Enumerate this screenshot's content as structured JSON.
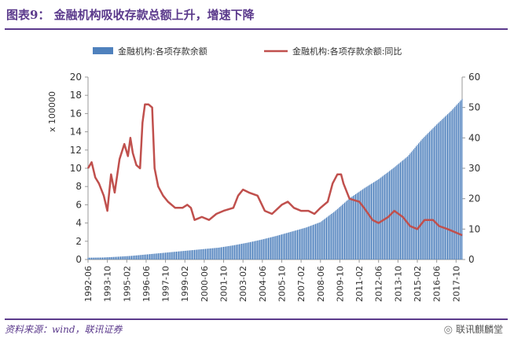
{
  "header": {
    "title": "图表9：  金融机构吸收存款总额上升，增速下降"
  },
  "footer": {
    "source": "资料来源：wind，联讯证券",
    "watermark": "联讯麒麟堂",
    "watermark_icon": "wechat-icon"
  },
  "chart_data": {
    "type": "bar+line",
    "legend_position": "top",
    "grid": false,
    "left_axis": {
      "unit_label": "x 100000",
      "ylim": [
        0,
        20
      ],
      "ticks": [
        0,
        2,
        4,
        6,
        8,
        10,
        12,
        14,
        16,
        18,
        20
      ]
    },
    "right_axis": {
      "ylim": [
        0,
        60
      ],
      "ticks": [
        0,
        10,
        20,
        30,
        40,
        50,
        60
      ]
    },
    "x_tick_labels": [
      "1992-06",
      "1993-10",
      "1995-02",
      "1996-06",
      "1997-10",
      "1999-02",
      "2000-06",
      "2001-10",
      "2003-02",
      "2004-06",
      "2005-10",
      "2007-02",
      "2008-06",
      "2009-10",
      "2011-02",
      "2012-06",
      "2013-10",
      "2015-02",
      "2016-06",
      "2017-10"
    ],
    "series": [
      {
        "name": "金融机构:各项存款余额",
        "kind": "bar",
        "axis": "left",
        "color": "#4f81bd",
        "points": [
          [
            "1992-06",
            0.2
          ],
          [
            "1993-06",
            0.22
          ],
          [
            "1994-06",
            0.3
          ],
          [
            "1995-06",
            0.4
          ],
          [
            "1996-06",
            0.55
          ],
          [
            "1997-06",
            0.7
          ],
          [
            "1998-06",
            0.85
          ],
          [
            "1999-06",
            1.0
          ],
          [
            "2000-06",
            1.15
          ],
          [
            "2001-06",
            1.3
          ],
          [
            "2002-06",
            1.55
          ],
          [
            "2003-06",
            1.85
          ],
          [
            "2004-06",
            2.2
          ],
          [
            "2005-06",
            2.6
          ],
          [
            "2006-06",
            3.05
          ],
          [
            "2007-06",
            3.5
          ],
          [
            "2008-06",
            4.1
          ],
          [
            "2009-06",
            5.3
          ],
          [
            "2010-06",
            6.7
          ],
          [
            "2011-06",
            7.8
          ],
          [
            "2012-06",
            8.8
          ],
          [
            "2013-06",
            10.0
          ],
          [
            "2014-06",
            11.3
          ],
          [
            "2015-06",
            13.2
          ],
          [
            "2016-06",
            14.8
          ],
          [
            "2017-06",
            16.3
          ],
          [
            "2018-03",
            17.6
          ]
        ]
      },
      {
        "name": "金融机构:各项存款余额:同比",
        "kind": "line",
        "axis": "right",
        "color": "#c0504d",
        "points": [
          [
            "1992-06",
            30
          ],
          [
            "1992-09",
            32
          ],
          [
            "1992-12",
            27
          ],
          [
            "1993-03",
            25
          ],
          [
            "1993-07",
            21
          ],
          [
            "1993-10",
            16
          ],
          [
            "1994-01",
            28
          ],
          [
            "1994-04",
            22
          ],
          [
            "1994-08",
            33
          ],
          [
            "1994-12",
            38
          ],
          [
            "1995-03",
            34
          ],
          [
            "1995-05",
            40
          ],
          [
            "1995-07",
            35
          ],
          [
            "1995-10",
            31
          ],
          [
            "1996-01",
            30
          ],
          [
            "1996-03",
            45
          ],
          [
            "1996-05",
            51
          ],
          [
            "1996-08",
            51
          ],
          [
            "1996-11",
            50
          ],
          [
            "1997-01",
            30
          ],
          [
            "1997-04",
            24
          ],
          [
            "1997-08",
            21
          ],
          [
            "1997-12",
            19
          ],
          [
            "1998-06",
            17
          ],
          [
            "1998-12",
            17
          ],
          [
            "1999-04",
            18
          ],
          [
            "1999-07",
            17
          ],
          [
            "1999-10",
            13
          ],
          [
            "2000-04",
            14
          ],
          [
            "2000-10",
            13
          ],
          [
            "2001-04",
            15
          ],
          [
            "2001-10",
            16
          ],
          [
            "2002-06",
            17
          ],
          [
            "2002-10",
            21
          ],
          [
            "2003-02",
            23
          ],
          [
            "2003-07",
            22
          ],
          [
            "2004-02",
            21
          ],
          [
            "2004-08",
            16
          ],
          [
            "2005-02",
            15
          ],
          [
            "2005-10",
            18
          ],
          [
            "2006-03",
            19
          ],
          [
            "2006-08",
            17
          ],
          [
            "2007-02",
            16
          ],
          [
            "2007-08",
            16
          ],
          [
            "2008-01",
            15
          ],
          [
            "2008-06",
            17
          ],
          [
            "2008-12",
            19
          ],
          [
            "2009-04",
            25
          ],
          [
            "2009-08",
            28
          ],
          [
            "2009-11",
            28
          ],
          [
            "2010-01",
            25
          ],
          [
            "2010-06",
            20
          ],
          [
            "2011-02",
            19
          ],
          [
            "2011-06",
            17
          ],
          [
            "2012-01",
            13
          ],
          [
            "2012-06",
            12
          ],
          [
            "2013-02",
            14
          ],
          [
            "2013-07",
            16
          ],
          [
            "2014-02",
            14
          ],
          [
            "2014-08",
            11
          ],
          [
            "2015-02",
            10
          ],
          [
            "2015-08",
            13
          ],
          [
            "2016-03",
            13
          ],
          [
            "2016-08",
            11
          ],
          [
            "2017-03",
            10
          ],
          [
            "2017-09",
            9
          ],
          [
            "2018-03",
            8
          ]
        ]
      }
    ]
  }
}
